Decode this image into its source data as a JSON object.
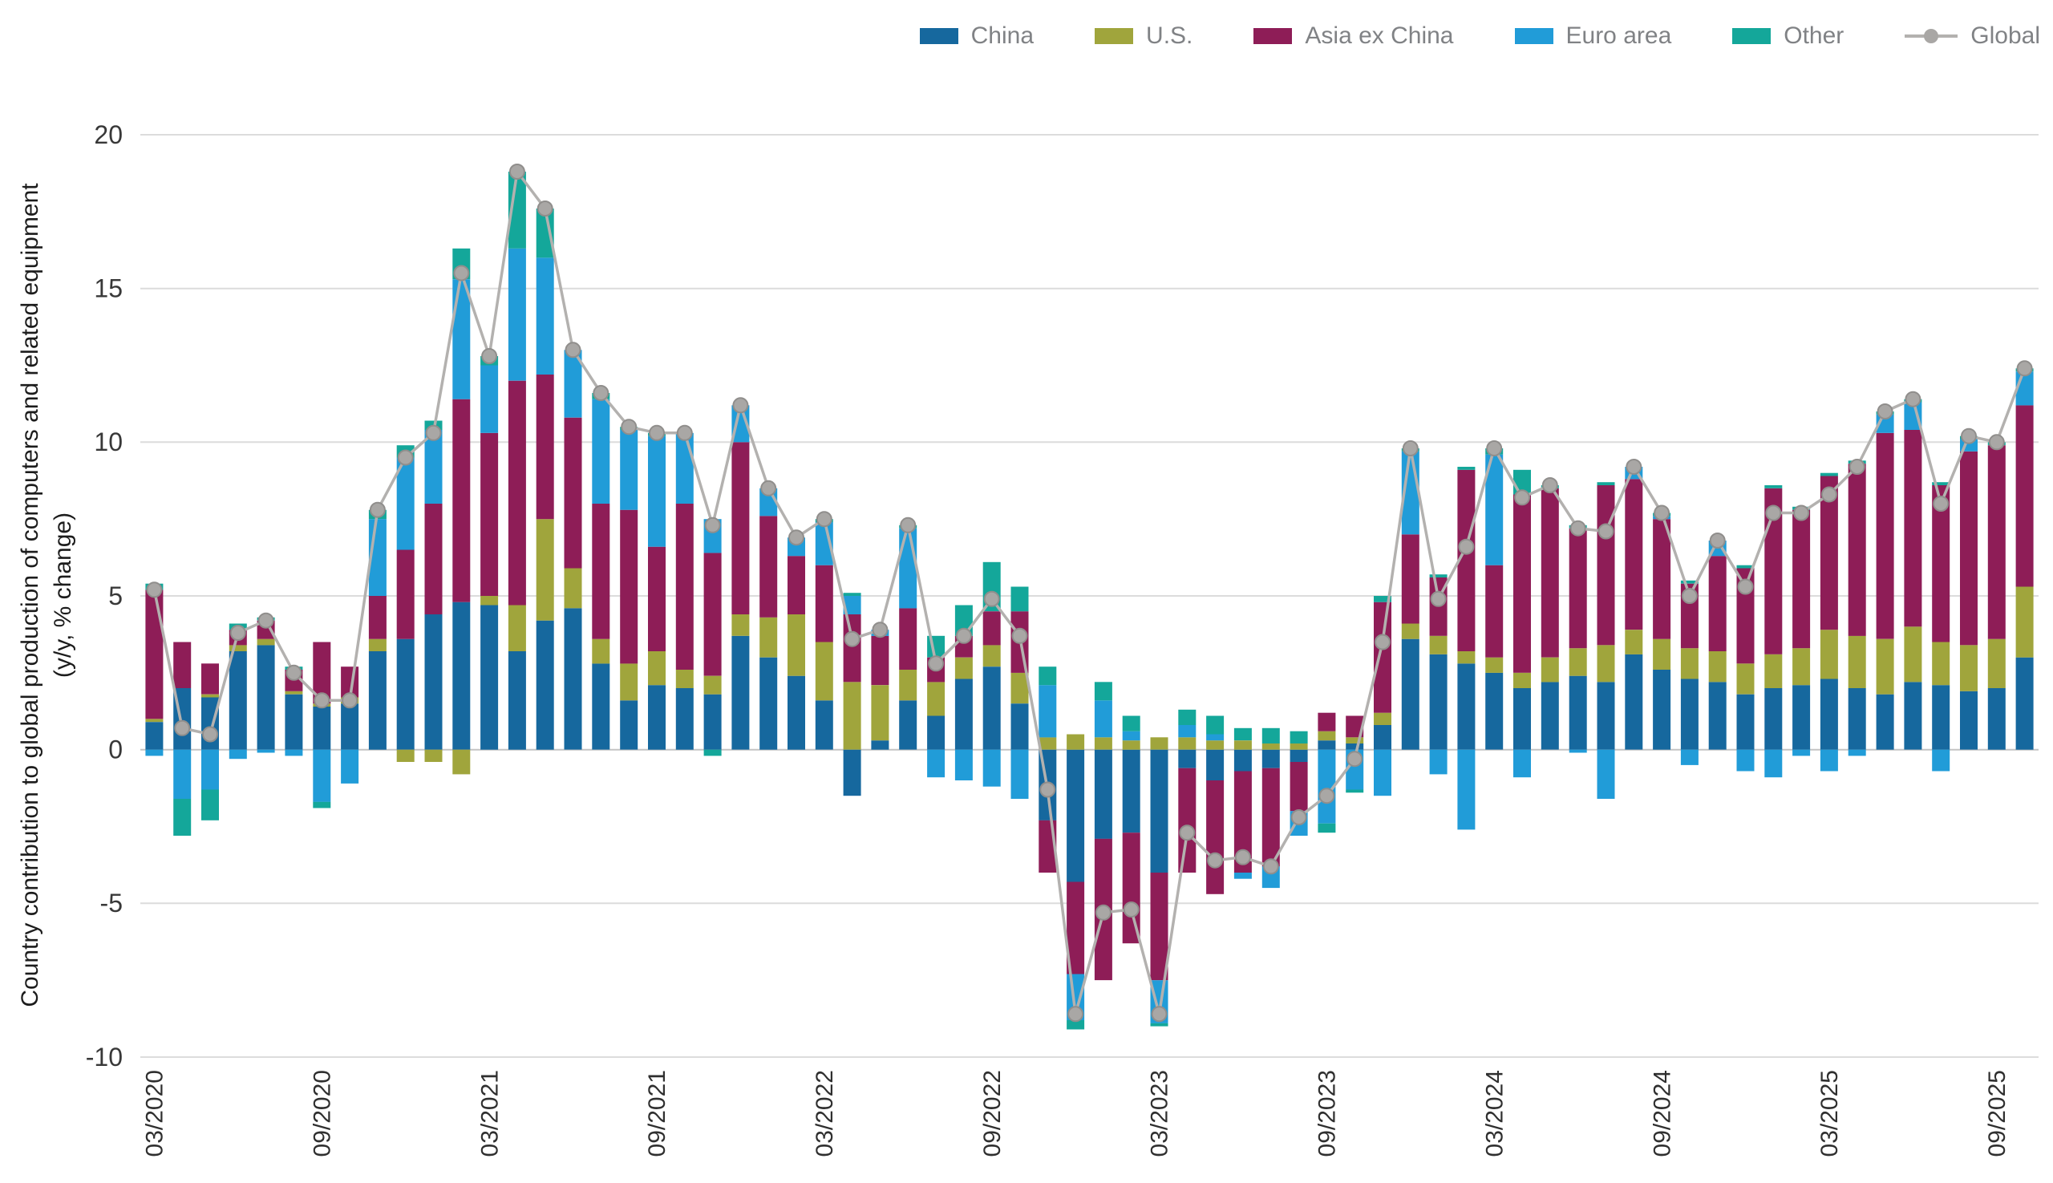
{
  "page": {
    "background": "#ffffff"
  },
  "chart_data": {
    "type": "bar",
    "stacked": true,
    "title": "",
    "ylabel_line1": "Country contribution to global production of computers and related equipment",
    "ylabel_line2": "(y/y, % change)",
    "xlabel": "",
    "ylim": [
      -10,
      20
    ],
    "yticks": [
      20,
      15,
      10,
      5,
      0,
      -5,
      -10
    ],
    "x_tick_every": 6,
    "grid": true,
    "legend_position": "top-right",
    "categories": [
      "03/2020",
      "04/2020",
      "05/2020",
      "06/2020",
      "07/2020",
      "08/2020",
      "09/2020",
      "10/2020",
      "11/2020",
      "12/2020",
      "01/2021",
      "02/2021",
      "03/2021",
      "04/2021",
      "05/2021",
      "06/2021",
      "07/2021",
      "08/2021",
      "09/2021",
      "10/2021",
      "11/2021",
      "12/2021",
      "01/2022",
      "02/2022",
      "03/2022",
      "04/2022",
      "05/2022",
      "06/2022",
      "07/2022",
      "08/2022",
      "09/2022",
      "10/2022",
      "11/2022",
      "12/2022",
      "01/2023",
      "02/2023",
      "03/2023",
      "04/2023",
      "05/2023",
      "06/2023",
      "07/2023",
      "08/2023",
      "09/2023",
      "10/2023",
      "11/2023",
      "12/2023",
      "01/2024",
      "02/2024",
      "03/2024",
      "04/2024",
      "05/2024",
      "06/2024",
      "07/2024",
      "08/2024",
      "09/2024",
      "10/2024",
      "11/2024",
      "12/2024",
      "01/2025",
      "02/2025",
      "03/2025",
      "04/2025",
      "05/2025",
      "06/2025",
      "07/2025",
      "08/2025",
      "09/2025",
      "10/2025"
    ],
    "series": [
      {
        "name": "China",
        "color": "#16689e",
        "values": [
          0.9,
          2.0,
          1.7,
          3.2,
          3.4,
          1.8,
          1.4,
          1.5,
          3.2,
          3.6,
          4.4,
          4.8,
          4.7,
          3.2,
          4.2,
          4.6,
          2.8,
          1.6,
          2.1,
          2.0,
          1.8,
          3.7,
          3.0,
          2.4,
          1.6,
          -1.5,
          0.3,
          1.6,
          1.1,
          2.3,
          2.7,
          1.5,
          -2.3,
          -4.3,
          -2.9,
          -2.7,
          -4.0,
          -0.6,
          -1.0,
          -0.7,
          -0.6,
          -0.4,
          0.3,
          0.2,
          0.8,
          3.6,
          3.1,
          2.8,
          2.5,
          2.0,
          2.2,
          2.4,
          2.2,
          3.1,
          2.6,
          2.3,
          2.2,
          1.8,
          2.0,
          2.1,
          2.3,
          2.0,
          1.8,
          2.2,
          2.1,
          1.9,
          2.0,
          3.0
        ]
      },
      {
        "name": "U.S.",
        "color": "#a0a53c",
        "values": [
          0.1,
          0.0,
          0.1,
          0.2,
          0.2,
          0.1,
          0.1,
          0.2,
          0.4,
          -0.4,
          -0.4,
          -0.8,
          0.3,
          1.5,
          3.3,
          1.3,
          0.8,
          1.2,
          1.1,
          0.6,
          0.6,
          0.7,
          1.3,
          2.0,
          1.9,
          2.2,
          1.8,
          1.0,
          1.1,
          0.7,
          0.7,
          1.0,
          0.4,
          0.5,
          0.4,
          0.3,
          0.4,
          0.4,
          0.3,
          0.3,
          0.2,
          0.2,
          0.3,
          0.2,
          0.4,
          0.5,
          0.6,
          0.4,
          0.5,
          0.5,
          0.8,
          0.9,
          1.2,
          0.8,
          1.0,
          1.0,
          1.0,
          1.0,
          1.1,
          1.2,
          1.6,
          1.7,
          1.8,
          1.8,
          1.4,
          1.5,
          1.6,
          2.3
        ]
      },
      {
        "name": "Asia ex China",
        "color": "#8e1d57",
        "values": [
          4.2,
          1.5,
          1.0,
          0.5,
          0.6,
          0.7,
          2.0,
          1.0,
          1.4,
          2.9,
          3.6,
          6.6,
          5.3,
          7.3,
          4.7,
          4.9,
          4.4,
          5.0,
          3.4,
          5.4,
          4.0,
          5.6,
          3.3,
          1.9,
          2.5,
          2.2,
          1.6,
          2.0,
          0.8,
          0.7,
          1.1,
          2.0,
          -1.7,
          -3.0,
          -4.6,
          -3.6,
          -3.5,
          -3.4,
          -3.7,
          -3.3,
          -3.2,
          -1.6,
          0.6,
          0.7,
          3.6,
          2.9,
          1.9,
          5.9,
          3.0,
          5.8,
          5.5,
          3.9,
          5.2,
          4.9,
          3.9,
          2.1,
          3.1,
          3.1,
          5.4,
          4.5,
          5.0,
          5.6,
          6.7,
          6.4,
          5.1,
          6.3,
          6.3,
          5.9
        ]
      },
      {
        "name": "Euro area",
        "color": "#219cd8",
        "values": [
          -0.2,
          -1.6,
          -1.3,
          -0.3,
          -0.1,
          -0.2,
          -1.7,
          -1.1,
          2.5,
          3.0,
          2.4,
          3.9,
          2.2,
          4.3,
          3.8,
          2.2,
          3.4,
          2.6,
          3.6,
          2.3,
          1.1,
          1.2,
          0.9,
          0.6,
          1.4,
          0.6,
          0.2,
          2.6,
          -0.9,
          -1.0,
          -1.2,
          -1.6,
          1.7,
          -1.5,
          1.2,
          0.3,
          -1.4,
          0.4,
          0.2,
          -0.2,
          -0.7,
          -0.8,
          -2.4,
          -1.3,
          -1.5,
          2.7,
          -0.8,
          -2.6,
          3.6,
          -0.9,
          0.0,
          -0.1,
          -1.6,
          0.4,
          0.1,
          -0.5,
          0.5,
          -0.7,
          -0.9,
          -0.2,
          -0.7,
          -0.2,
          0.6,
          0.9,
          -0.7,
          0.4,
          0.0,
          1.1
        ]
      },
      {
        "name": "Other",
        "color": "#14a79a",
        "values": [
          0.2,
          -1.2,
          -1.0,
          0.2,
          0.1,
          0.1,
          -0.2,
          0.0,
          0.3,
          0.4,
          0.3,
          1.0,
          0.3,
          2.5,
          1.6,
          0.0,
          0.2,
          0.1,
          0.1,
          0.0,
          -0.2,
          0.0,
          0.0,
          0.0,
          0.1,
          0.1,
          0.0,
          0.1,
          0.7,
          1.0,
          1.6,
          0.8,
          0.6,
          -0.3,
          0.6,
          0.5,
          -0.1,
          0.5,
          0.6,
          0.4,
          0.5,
          0.4,
          -0.3,
          -0.1,
          0.2,
          0.1,
          0.1,
          0.1,
          0.2,
          0.8,
          0.1,
          0.1,
          0.1,
          0.0,
          0.1,
          0.1,
          0.0,
          0.1,
          0.1,
          0.1,
          0.1,
          0.1,
          0.1,
          0.1,
          0.1,
          0.1,
          0.1,
          0.1
        ]
      }
    ],
    "line_series": {
      "name": "Global",
      "color": "#b3b1af",
      "marker_color": "#a9a7a5",
      "marker_stroke": "#908e8c",
      "values": [
        5.2,
        0.7,
        0.5,
        3.8,
        4.2,
        2.5,
        1.6,
        1.6,
        7.8,
        9.5,
        10.3,
        15.5,
        12.8,
        18.8,
        17.6,
        13.0,
        11.6,
        10.5,
        10.3,
        10.3,
        7.3,
        11.2,
        8.5,
        6.9,
        7.5,
        3.6,
        3.9,
        7.3,
        2.8,
        3.7,
        4.9,
        3.7,
        -1.3,
        -8.6,
        -5.3,
        -5.2,
        -8.6,
        -2.7,
        -3.6,
        -3.5,
        -3.8,
        -2.2,
        -1.5,
        -0.3,
        3.5,
        9.8,
        4.9,
        6.6,
        9.8,
        8.2,
        8.6,
        7.2,
        7.1,
        9.2,
        7.7,
        5.0,
        6.8,
        5.3,
        7.7,
        7.7,
        8.3,
        9.2,
        11.0,
        11.4,
        8.0,
        10.2,
        10.0,
        12.4
      ]
    }
  }
}
